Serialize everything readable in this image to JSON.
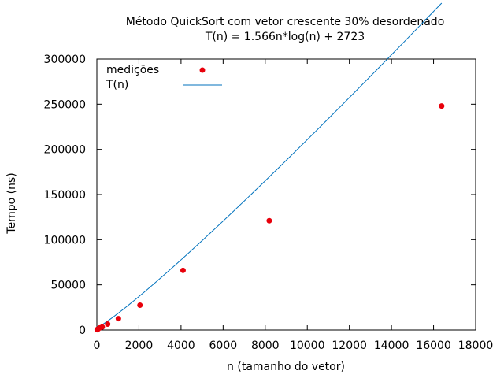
{
  "chart_data": {
    "type": "scatter",
    "title": "Método QuickSort com vetor crescente 30% desordenado",
    "subtitle": "T(n) = 1.566n*log(n) + 2723",
    "xlabel": "n (tamanho do vetor)",
    "ylabel": "Tempo (ns)",
    "xlim": [
      0,
      18000
    ],
    "ylim": [
      0,
      300000
    ],
    "x_ticks": [
      0,
      2000,
      4000,
      6000,
      8000,
      10000,
      12000,
      14000,
      16000,
      18000
    ],
    "y_ticks": [
      0,
      50000,
      100000,
      150000,
      200000,
      250000,
      300000
    ],
    "grid": false,
    "legend_position": "top-left",
    "series": [
      {
        "name": "medições",
        "kind": "points",
        "color": "#e8000b",
        "x": [
          16,
          32,
          64,
          128,
          256,
          512,
          1024,
          2048,
          4096,
          8192,
          16384
        ],
        "y": [
          300,
          700,
          1200,
          2300,
          3400,
          6500,
          12500,
          27500,
          66000,
          121000,
          248000
        ]
      },
      {
        "name": "T(n)",
        "kind": "line",
        "color": "#0072bd",
        "formula": "1.566*n*log2(n) + 2723"
      }
    ]
  }
}
